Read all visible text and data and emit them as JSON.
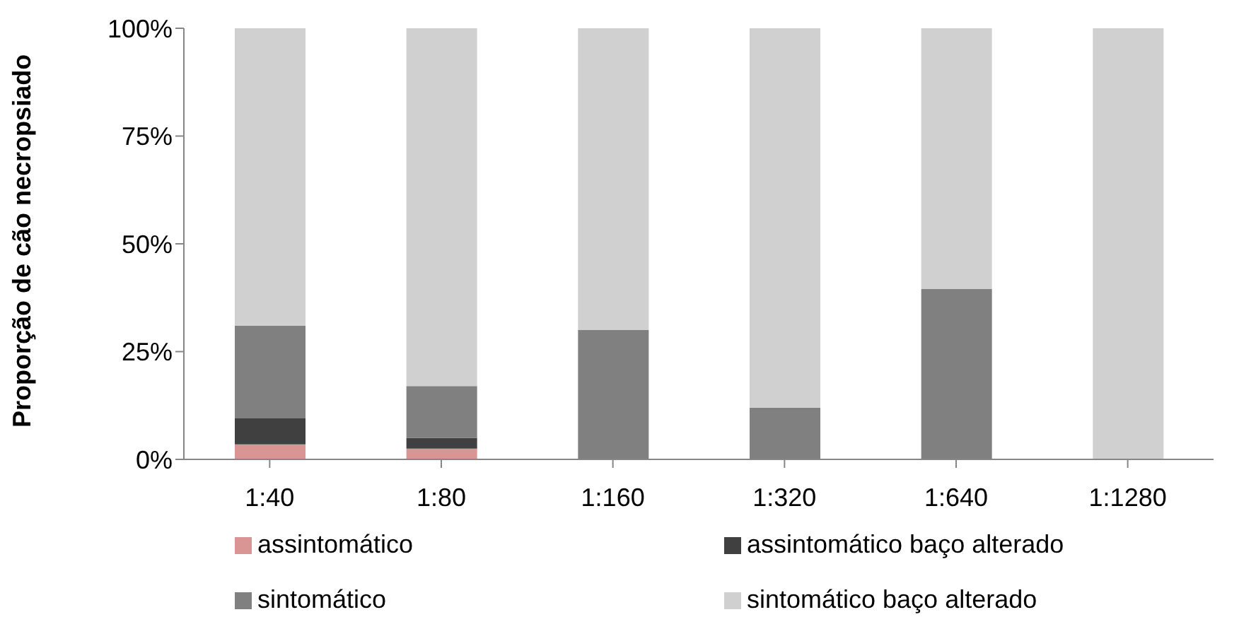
{
  "chart_data": {
    "type": "bar",
    "stacked": true,
    "ylabel": "Proporção de cão necropsiado",
    "categories": [
      "1:40",
      "1:80",
      "1:160",
      "1:320",
      "1:640",
      "1:1280"
    ],
    "series": [
      {
        "name": "assintomático",
        "color": "#d99594",
        "values": [
          3.5,
          2.5,
          0,
          0,
          0,
          0
        ]
      },
      {
        "name": "assintomático baço alterado",
        "color": "#404040",
        "values": [
          6,
          2.5,
          0,
          0,
          0,
          0
        ]
      },
      {
        "name": "sintomático",
        "color": "#808080",
        "values": [
          21.5,
          12,
          30,
          12,
          39.5,
          0
        ]
      },
      {
        "name": "sintomático baço alterado",
        "color": "#d0d0d0",
        "values": [
          69,
          83,
          70,
          88,
          60.5,
          100
        ]
      }
    ],
    "ylim": [
      0,
      100
    ],
    "yticks": [
      {
        "value": 0,
        "label": "0%"
      },
      {
        "value": 25,
        "label": "25%"
      },
      {
        "value": 50,
        "label": "50%"
      },
      {
        "value": 75,
        "label": "75%"
      },
      {
        "value": 100,
        "label": "100%"
      }
    ],
    "grid": false,
    "legend": "bottom"
  }
}
